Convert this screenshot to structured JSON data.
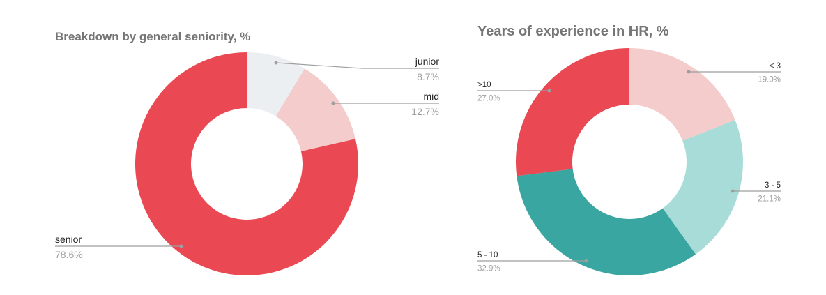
{
  "chart_data": [
    {
      "type": "pie",
      "donut": true,
      "title": "Breakdown by general seniority, %",
      "slices": [
        {
          "label": "junior",
          "value": 8.7,
          "display": "8.7%",
          "color": "#eceff1"
        },
        {
          "label": "mid",
          "value": 12.7,
          "display": "12.7%",
          "color": "#f4cccc"
        },
        {
          "label": "senior",
          "value": 78.6,
          "display": "78.6%",
          "color": "#ea4852"
        }
      ],
      "legend": "none"
    },
    {
      "type": "pie",
      "donut": true,
      "title": "Years of experience in HR, %",
      "slices": [
        {
          "label": "< 3",
          "value": 19.0,
          "display": "19.0%",
          "color": "#f4cccc"
        },
        {
          "label": "3 - 5",
          "value": 21.1,
          "display": "21.1%",
          "color": "#a8dcd9"
        },
        {
          "label": "5 - 10",
          "value": 32.9,
          "display": "32.9%",
          "color": "#3aa6a1"
        },
        {
          "label": ">10",
          "value": 27.0,
          "display": "27.0%",
          "color": "#ea4852"
        }
      ],
      "legend": "none"
    }
  ]
}
